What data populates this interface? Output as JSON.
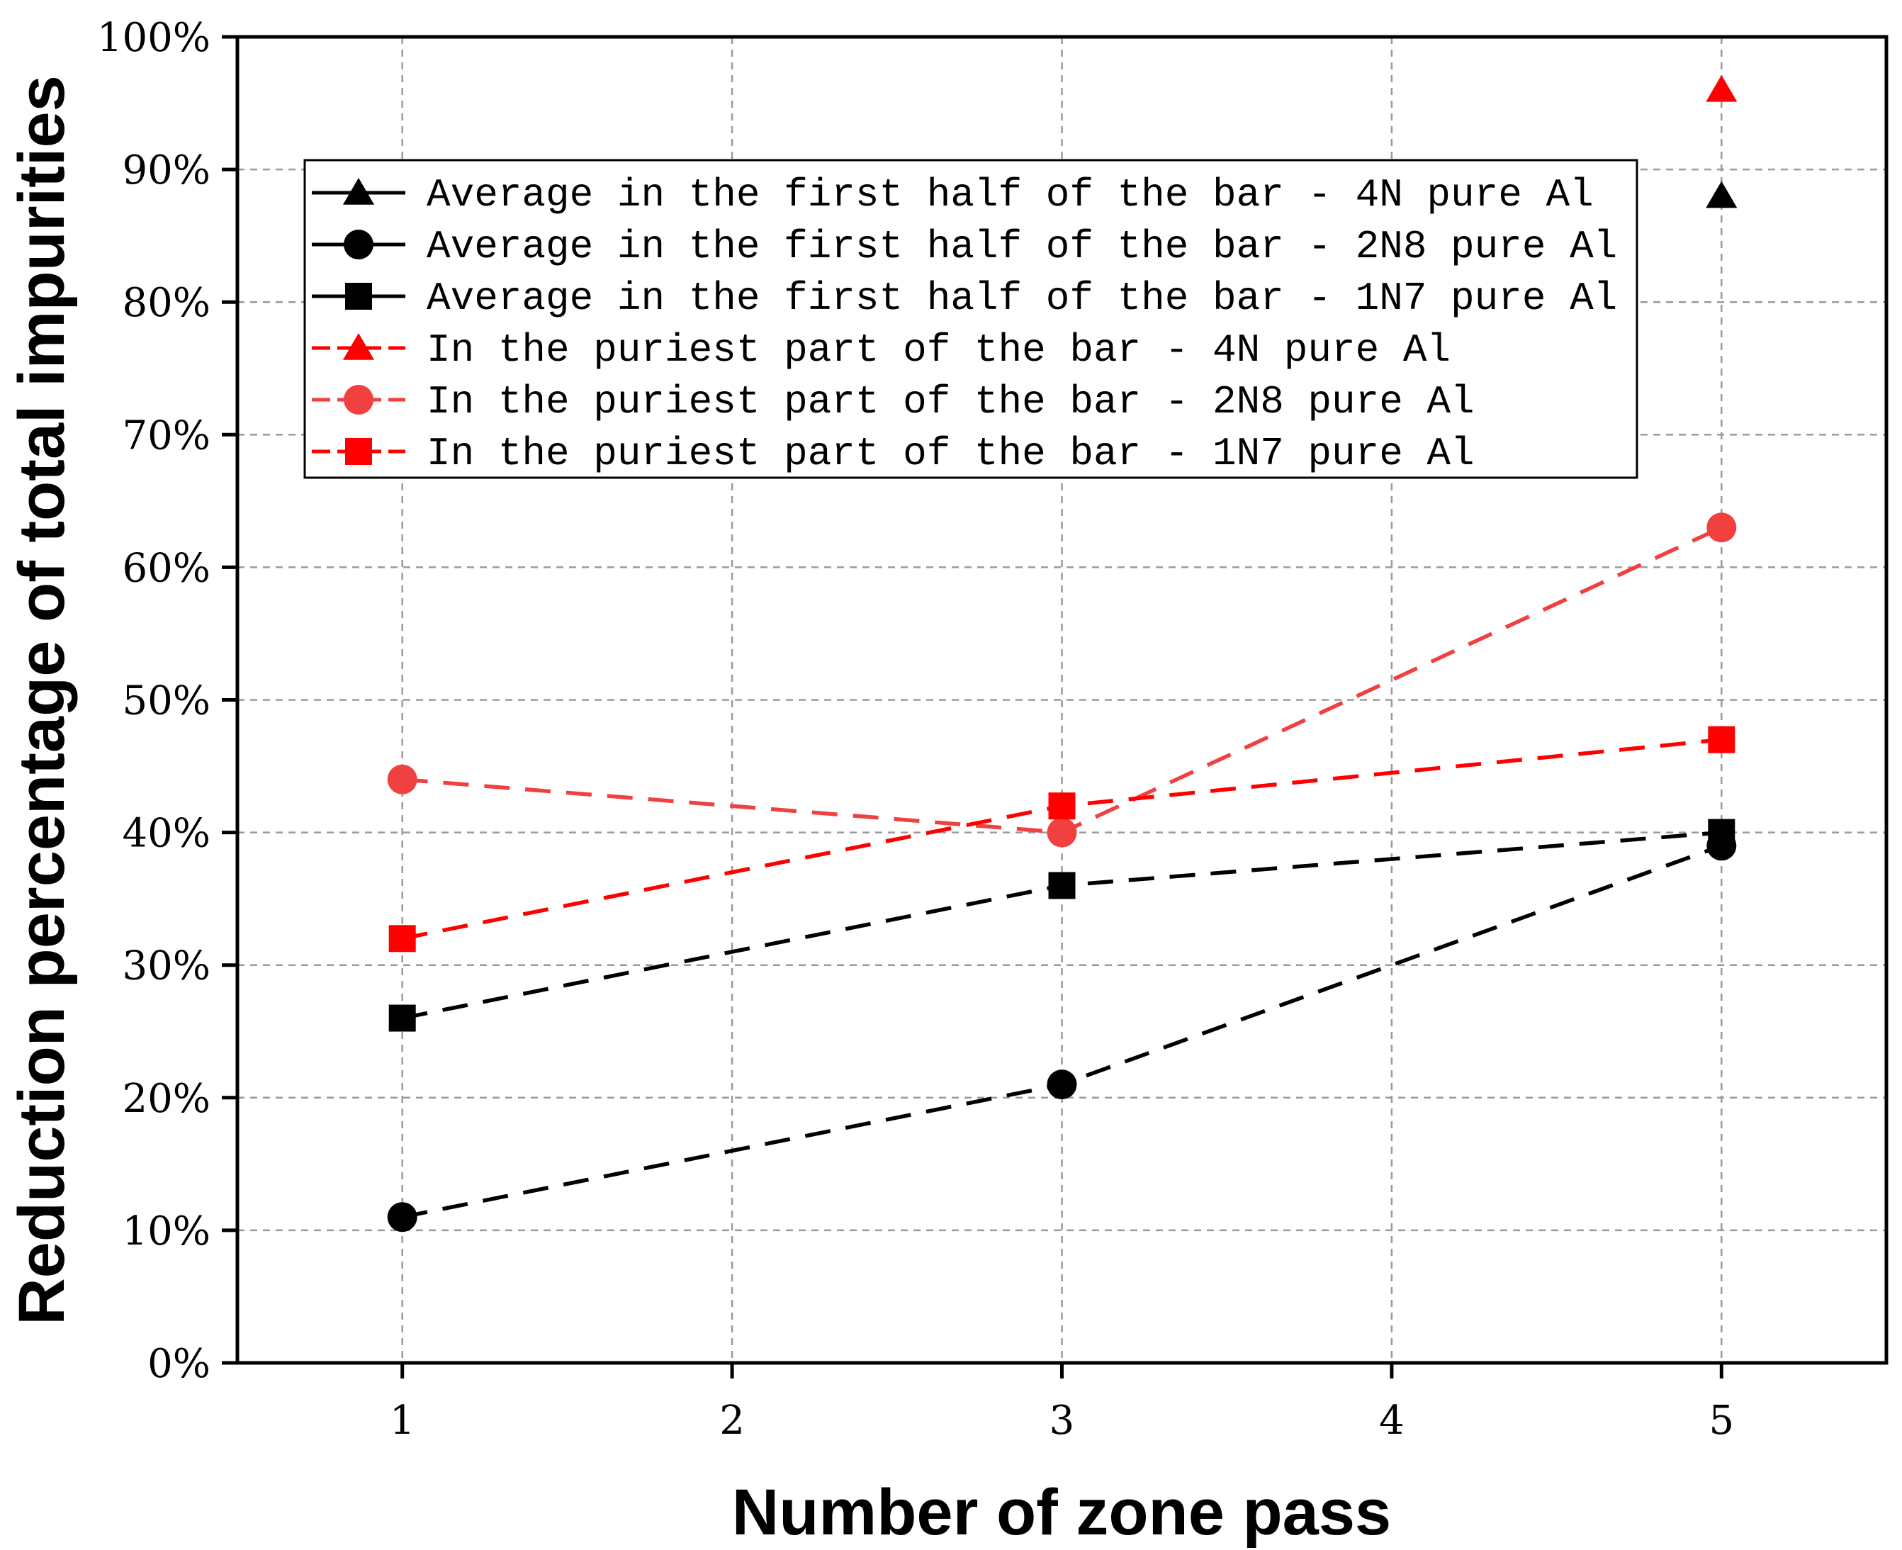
{
  "chart_data": {
    "type": "line",
    "xlabel": "Number of zone pass",
    "ylabel": "Reduction percentage of total impurities",
    "x_ticks": [
      "1",
      "2",
      "3",
      "4",
      "5"
    ],
    "y_ticks": [
      "0%",
      "10%",
      "20%",
      "30%",
      "40%",
      "50%",
      "60%",
      "70%",
      "80%",
      "90%",
      "100%"
    ],
    "xlim": [
      0.5,
      5.5
    ],
    "ylim": [
      0,
      100
    ],
    "grid": true,
    "legend_position": "top-left",
    "series": [
      {
        "name": "Average in the first half of the bar - 4N pure Al",
        "color": "#000000",
        "marker": "triangle",
        "x": [
          5
        ],
        "y": [
          88
        ]
      },
      {
        "name": "Average in the first half of the bar - 2N8 pure Al",
        "color": "#000000",
        "marker": "circle",
        "x": [
          1,
          3,
          5
        ],
        "y": [
          11,
          21,
          39
        ]
      },
      {
        "name": "Average in the first half of the bar - 1N7 pure Al",
        "color": "#000000",
        "marker": "square",
        "x": [
          1,
          3,
          5
        ],
        "y": [
          26,
          36,
          40
        ]
      },
      {
        "name": "In the puriest part of the bar - 4N pure Al",
        "color": "#ff0000",
        "marker": "triangle",
        "x": [
          5
        ],
        "y": [
          96
        ]
      },
      {
        "name": "In the puriest part of the bar - 2N8 pure Al",
        "color": "#f04040",
        "marker": "circle",
        "x": [
          1,
          3,
          5
        ],
        "y": [
          44,
          40,
          63
        ]
      },
      {
        "name": "In the puriest part of the bar - 1N7 pure Al",
        "color": "#ff0000",
        "marker": "square",
        "x": [
          1,
          3,
          5
        ],
        "y": [
          32,
          42,
          47
        ]
      }
    ]
  }
}
